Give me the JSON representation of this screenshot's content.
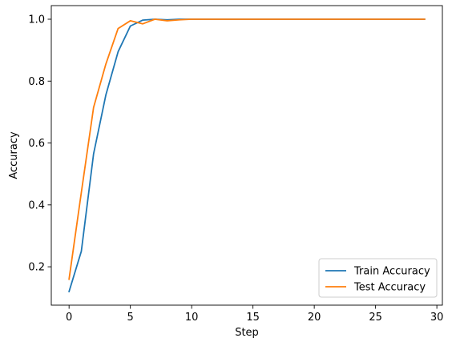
{
  "chart_data": {
    "type": "line",
    "title": "",
    "xlabel": "Step",
    "ylabel": "Accuracy",
    "xlim": [
      -1.45,
      30.45
    ],
    "ylim": [
      0.076,
      1.044
    ],
    "xticks": [
      0,
      5,
      10,
      15,
      20,
      25,
      30
    ],
    "xtick_labels": [
      "0",
      "5",
      "10",
      "15",
      "20",
      "25",
      "30"
    ],
    "yticks": [
      0.2,
      0.4,
      0.6,
      0.8,
      1.0
    ],
    "ytick_labels": [
      "0.2",
      "0.4",
      "0.6",
      "0.8",
      "1.0"
    ],
    "grid": false,
    "legend_placement": "lower-right",
    "x": [
      0,
      1,
      2,
      3,
      4,
      5,
      6,
      7,
      8,
      9,
      10,
      11,
      12,
      13,
      14,
      15,
      16,
      17,
      18,
      19,
      20,
      21,
      22,
      23,
      24,
      25,
      26,
      27,
      28,
      29
    ],
    "series": [
      {
        "name": "Train Accuracy",
        "color": "#1f77b4",
        "values": [
          0.12,
          0.25,
          0.565,
          0.755,
          0.895,
          0.978,
          0.997,
          1.0,
          0.998,
          1.0,
          1.0,
          1.0,
          1.0,
          1.0,
          1.0,
          1.0,
          1.0,
          1.0,
          1.0,
          1.0,
          1.0,
          1.0,
          1.0,
          1.0,
          1.0,
          1.0,
          1.0,
          1.0,
          1.0,
          1.0
        ]
      },
      {
        "name": "Test Accuracy",
        "color": "#ff7f0e",
        "values": [
          0.16,
          0.44,
          0.715,
          0.855,
          0.97,
          0.995,
          0.985,
          1.0,
          0.995,
          0.998,
          1.0,
          1.0,
          1.0,
          1.0,
          1.0,
          1.0,
          1.0,
          1.0,
          1.0,
          1.0,
          1.0,
          1.0,
          1.0,
          1.0,
          1.0,
          1.0,
          1.0,
          1.0,
          1.0,
          1.0
        ]
      }
    ]
  }
}
